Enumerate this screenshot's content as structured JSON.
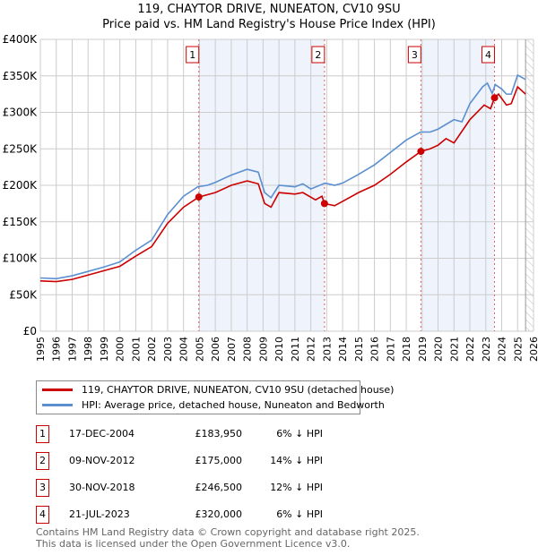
{
  "title": "119, CHAYTOR DRIVE, NUNEATON, CV10 9SU",
  "subtitle": "Price paid vs. HM Land Registry's House Price Index (HPI)",
  "legend": [
    {
      "label": "119, CHAYTOR DRIVE, NUNEATON, CV10 9SU (detached house)",
      "color": "#cc0000"
    },
    {
      "label": "HPI: Average price, detached house, Nuneaton and Bedworth",
      "color": "#5b8fd0"
    }
  ],
  "sales": [
    {
      "num": "1",
      "date": "17-DEC-2004",
      "price": "£183,950",
      "hpi": "6% ↓ HPI"
    },
    {
      "num": "2",
      "date": "09-NOV-2012",
      "price": "£175,000",
      "hpi": "14% ↓ HPI"
    },
    {
      "num": "3",
      "date": "30-NOV-2018",
      "price": "£246,500",
      "hpi": "12% ↓ HPI"
    },
    {
      "num": "4",
      "date": "21-JUL-2023",
      "price": "£320,000",
      "hpi": "6% ↓ HPI"
    }
  ],
  "footer": [
    "Contains HM Land Registry data © Crown copyright and database right 2025.",
    "This data is licensed under the Open Government Licence v3.0."
  ],
  "chart_data": {
    "type": "line",
    "xlim": [
      1995,
      2026
    ],
    "ylim": [
      0,
      400000
    ],
    "yticks": [
      0,
      50000,
      100000,
      150000,
      200000,
      250000,
      300000,
      350000,
      400000
    ],
    "ytick_labels": [
      "£0",
      "£50K",
      "£100K",
      "£150K",
      "£200K",
      "£250K",
      "£300K",
      "£350K",
      "£400K"
    ],
    "xticks": [
      "1995",
      "1996",
      "1997",
      "1998",
      "1999",
      "2000",
      "2001",
      "2002",
      "2003",
      "2004",
      "2005",
      "2006",
      "2007",
      "2008",
      "2009",
      "2010",
      "2011",
      "2012",
      "2013",
      "2014",
      "2015",
      "2016",
      "2017",
      "2018",
      "2019",
      "2020",
      "2021",
      "2022",
      "2023",
      "2024",
      "2025",
      "2026"
    ],
    "grid": true,
    "sale_points": [
      {
        "x": 2004.96,
        "y": 183950
      },
      {
        "x": 2012.86,
        "y": 175000
      },
      {
        "x": 2018.92,
        "y": 246500
      },
      {
        "x": 2023.55,
        "y": 320000
      }
    ],
    "shaded": [
      [
        2004.96,
        2012.86
      ],
      [
        2018.92,
        2023.55
      ]
    ],
    "forecast_from": 2025.5,
    "series": [
      {
        "name": "HPI",
        "color": "#5b8fd0",
        "x": [
          1995,
          1996,
          1997,
          1998,
          1999,
          2000,
          2001,
          2002,
          2003,
          2004,
          2004.9,
          2005.5,
          2006,
          2007,
          2008,
          2008.7,
          2009.1,
          2009.5,
          2010,
          2011,
          2011.5,
          2012,
          2012.9,
          2013.5,
          2014,
          2015,
          2016,
          2017,
          2018,
          2018.9,
          2019.5,
          2020,
          2021,
          2021.5,
          2022,
          2022.8,
          2023.1,
          2023.4,
          2023.6,
          2024,
          2024.3,
          2024.6,
          2025,
          2025.5
        ],
        "y": [
          73000,
          72000,
          76000,
          82000,
          88000,
          95000,
          111000,
          125000,
          160000,
          185000,
          198000,
          200000,
          204000,
          214000,
          222000,
          218000,
          190000,
          183000,
          200000,
          198000,
          202000,
          195000,
          203000,
          200000,
          203000,
          215000,
          228000,
          245000,
          262000,
          273000,
          273000,
          277000,
          290000,
          287000,
          312000,
          335000,
          340000,
          326000,
          338000,
          332000,
          325000,
          325000,
          351000,
          345000
        ]
      },
      {
        "name": "Price paid",
        "color": "#cc0000",
        "x": [
          1995,
          1996,
          1997,
          1998,
          1999,
          2000,
          2001,
          2002,
          2003,
          2004,
          2004.96,
          2006,
          2007,
          2008,
          2008.7,
          2009.1,
          2009.5,
          2010,
          2011,
          2011.5,
          2012.3,
          2012.7,
          2012.86,
          2013.5,
          2014,
          2015,
          2016,
          2017,
          2018,
          2018.92,
          2019.5,
          2020,
          2020.5,
          2021,
          2022,
          2022.9,
          2023.3,
          2023.55,
          2023.8,
          2024.3,
          2024.6,
          2025,
          2025.5
        ],
        "y": [
          69000,
          68000,
          71000,
          77000,
          83000,
          89000,
          103000,
          116000,
          148000,
          170000,
          183950,
          190000,
          200000,
          206000,
          202000,
          175000,
          170000,
          190000,
          188000,
          190000,
          180000,
          185000,
          175000,
          172000,
          178000,
          190000,
          200000,
          215000,
          232000,
          246500,
          250000,
          255000,
          264000,
          258000,
          290000,
          310000,
          305000,
          320000,
          325000,
          310000,
          312000,
          335000,
          325000
        ]
      }
    ]
  }
}
